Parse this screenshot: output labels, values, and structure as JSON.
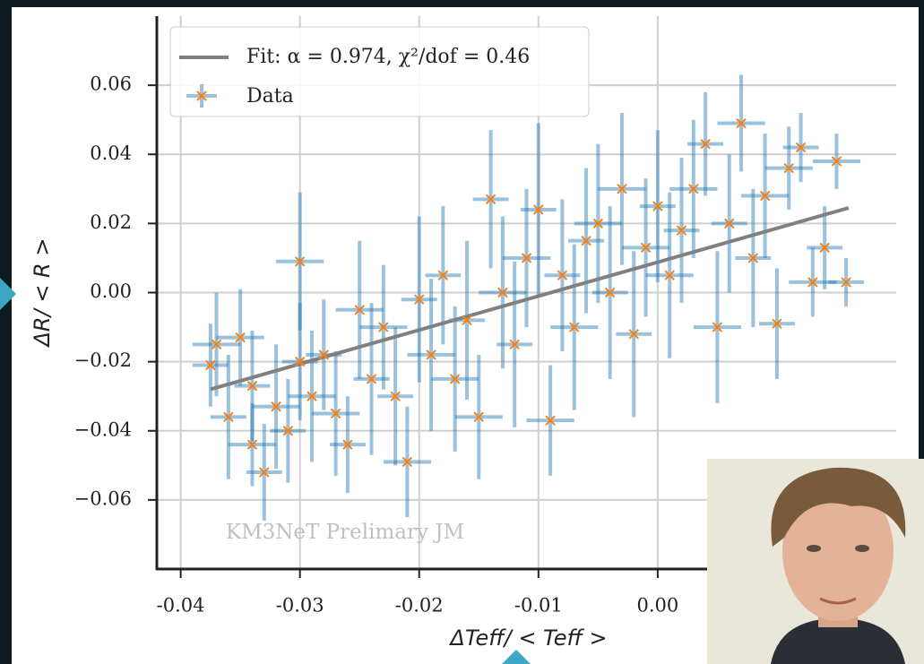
{
  "chart_data": {
    "type": "scatter",
    "xlabel": "ΔTeff/ < Teff >",
    "ylabel": "ΔR/ < R >",
    "watermark": "KM3NeT Prelimary JM",
    "xlim": [
      -0.042,
      0.02
    ],
    "ylim": [
      -0.08,
      0.08
    ],
    "xticks": [
      -0.04,
      -0.03,
      -0.02,
      -0.01,
      {
        "value": 0,
        "label": "0.00"
      }
    ],
    "yticks": [
      {
        "value": -0.06,
        "label": "−0.06"
      },
      {
        "value": -0.04,
        "label": "−0.04"
      },
      {
        "value": -0.02,
        "label": "−0.02"
      },
      {
        "value": 0,
        "label": "0.00"
      },
      {
        "value": 0.02,
        "label": "0.02"
      },
      {
        "value": 0.04,
        "label": "0.04"
      },
      {
        "value": 0.06,
        "label": "0.06"
      }
    ],
    "grid": true,
    "legend": "upper left",
    "series": [
      {
        "name": "Fit: α = 0.974, χ²/dof = 0.46",
        "color": "#808080",
        "x": [
          -0.0375,
          0.016
        ],
        "values": [
          -0.028,
          0.0245
        ]
      },
      {
        "name": "Data",
        "color": "#ff7f0e",
        "errcolor": "#1f77b4",
        "x": [
          -0.0375,
          -0.037,
          -0.036,
          -0.035,
          -0.034,
          -0.034,
          -0.033,
          -0.032,
          -0.031,
          -0.03,
          -0.03,
          -0.029,
          -0.028,
          -0.027,
          -0.026,
          -0.025,
          -0.024,
          -0.023,
          -0.022,
          -0.021,
          -0.02,
          -0.019,
          -0.018,
          -0.017,
          -0.016,
          -0.015,
          -0.014,
          -0.013,
          -0.012,
          -0.011,
          -0.01,
          -0.009,
          -0.008,
          -0.007,
          -0.006,
          -0.005,
          -0.004,
          -0.003,
          -0.002,
          -0.001,
          0.0,
          0.001,
          0.002,
          0.003,
          0.004,
          0.005,
          0.006,
          0.007,
          0.008,
          0.009,
          0.01,
          0.011,
          0.012,
          0.013,
          0.014,
          0.015,
          0.0158
        ],
        "values": [
          -0.021,
          -0.015,
          -0.036,
          -0.013,
          -0.027,
          -0.044,
          -0.052,
          -0.033,
          -0.04,
          0.009,
          -0.02,
          -0.03,
          -0.018,
          -0.035,
          -0.044,
          -0.005,
          -0.025,
          -0.01,
          -0.03,
          -0.049,
          -0.002,
          -0.018,
          0.005,
          -0.025,
          -0.008,
          -0.036,
          0.027,
          0.0,
          -0.015,
          0.01,
          0.024,
          -0.037,
          0.005,
          -0.01,
          0.015,
          0.02,
          0.0,
          0.03,
          -0.012,
          0.013,
          0.025,
          0.005,
          0.018,
          0.03,
          0.043,
          -0.01,
          0.02,
          0.049,
          0.01,
          0.028,
          -0.009,
          0.036,
          0.042,
          0.003,
          0.013,
          0.038,
          0.003
        ],
        "xerr": [
          0.0015,
          0.002,
          0.0015,
          0.002,
          0.0015,
          0.002,
          0.0015,
          0.002,
          0.0015,
          0.002,
          0.0015,
          0.002,
          0.0015,
          0.002,
          0.0015,
          0.002,
          0.0015,
          0.002,
          0.0015,
          0.002,
          0.0015,
          0.002,
          0.0015,
          0.002,
          0.0015,
          0.002,
          0.0015,
          0.002,
          0.0015,
          0.002,
          0.0015,
          0.002,
          0.0015,
          0.002,
          0.0015,
          0.002,
          0.0015,
          0.002,
          0.0015,
          0.002,
          0.0015,
          0.002,
          0.0015,
          0.002,
          0.0015,
          0.002,
          0.0015,
          0.002,
          0.0015,
          0.002,
          0.0015,
          0.002,
          0.0015,
          0.002,
          0.0015,
          0.002,
          0.0015
        ],
        "yerr": [
          0.012,
          0.015,
          0.018,
          0.014,
          0.016,
          0.012,
          0.014,
          0.018,
          0.015,
          0.02,
          0.017,
          0.019,
          0.016,
          0.018,
          0.014,
          0.02,
          0.022,
          0.018,
          0.02,
          0.016,
          0.024,
          0.022,
          0.02,
          0.021,
          0.023,
          0.018,
          0.02,
          0.022,
          0.024,
          0.02,
          0.025,
          0.016,
          0.022,
          0.024,
          0.021,
          0.023,
          0.025,
          0.022,
          0.024,
          0.02,
          0.022,
          0.024,
          0.021,
          0.02,
          0.015,
          0.022,
          0.02,
          0.014,
          0.02,
          0.018,
          0.016,
          0.012,
          0.01,
          0.01,
          0.012,
          0.008,
          0.007
        ]
      }
    ]
  }
}
